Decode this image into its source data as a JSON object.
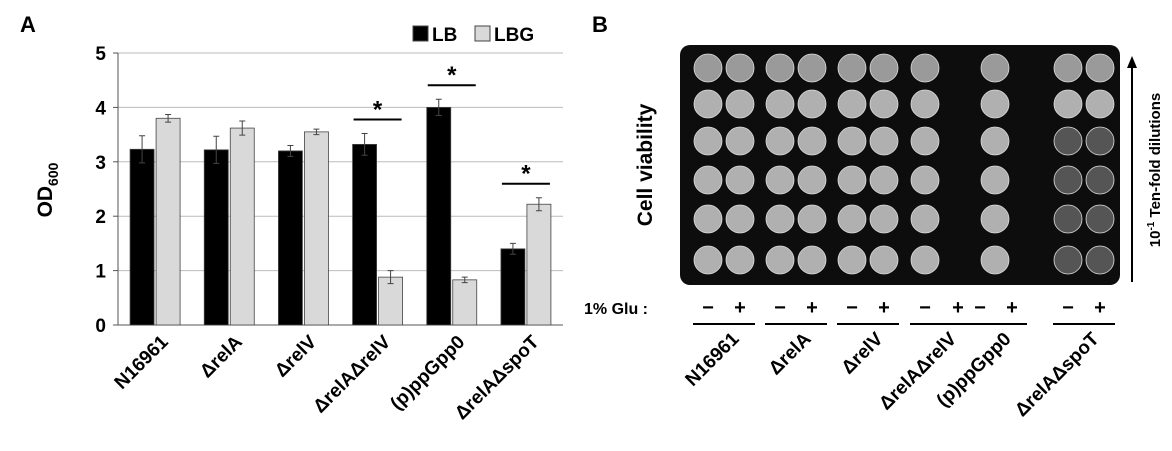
{
  "chart_data": {
    "type": "bar",
    "panel_label": "A",
    "y_label": [
      "OD",
      "600"
    ],
    "categories": [
      "N16961",
      "ΔrelA",
      "ΔrelV",
      "ΔrelAΔrelV",
      "(p)ppGpp0",
      "ΔrelAΔspoT"
    ],
    "series": [
      {
        "name": "LB",
        "color": "#000000",
        "values": [
          3.23,
          3.22,
          3.2,
          3.32,
          4.0,
          1.4
        ],
        "errors": [
          0.25,
          0.25,
          0.1,
          0.2,
          0.15,
          0.1
        ]
      },
      {
        "name": "LBG",
        "color": "#d9d9d9",
        "values": [
          3.8,
          3.62,
          3.55,
          0.88,
          0.83,
          2.22
        ],
        "errors": [
          0.07,
          0.13,
          0.05,
          0.12,
          0.05,
          0.12
        ]
      }
    ],
    "ylim": [
      0,
      5
    ],
    "yticks": [
      0,
      1,
      2,
      3,
      4,
      5
    ],
    "grid": true,
    "annotations": [
      {
        "text": "*",
        "category": "ΔrelAΔrelV"
      },
      {
        "text": "*",
        "category": "(p)ppGpp0"
      },
      {
        "text": "*",
        "category": "ΔrelAΔspoT"
      }
    ]
  },
  "panel_b": {
    "panel_label": "B",
    "y_label": "Cell viability",
    "glucose_label": "1% Glu :",
    "glucose_signs": [
      "−",
      "+"
    ],
    "strains": [
      "N16961",
      "ΔrelA",
      "ΔrelV",
      "ΔrelAΔrelV",
      "(p)ppGpp0",
      "ΔrelAΔspoT"
    ],
    "dilution_label": [
      "10",
      "-1",
      " Ten-fold dilutions"
    ]
  }
}
